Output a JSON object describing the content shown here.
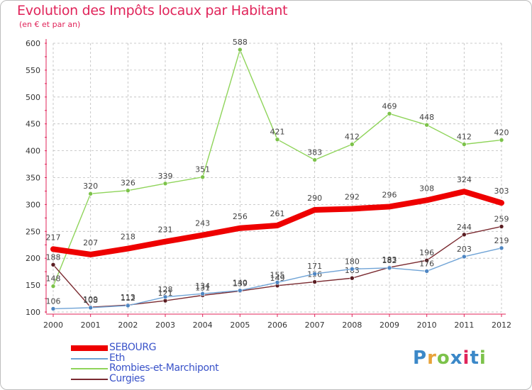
{
  "title": "Evolution des Impôts locaux par Habitant",
  "subtitle": "(en € et par an)",
  "logo_text": "Proxiti",
  "colors": {
    "title": "#e0245a",
    "axis": "#e0245a",
    "grid": "#bbbbbb",
    "legend_text": "#3a53c9",
    "logo": [
      "#3b88c8",
      "#e8a33a",
      "#7cc24a",
      "#3b88c8",
      "#e0245a",
      "#3b88c8",
      "#7cc24a"
    ]
  },
  "chart_data": {
    "type": "line",
    "x": [
      "2000",
      "2001",
      "2002",
      "2003",
      "2004",
      "2005",
      "2006",
      "2007",
      "2008",
      "2009",
      "2010",
      "2011",
      "2012"
    ],
    "ylim": [
      100,
      600
    ],
    "yticks": [
      100,
      150,
      200,
      250,
      300,
      350,
      400,
      450,
      500,
      550,
      600
    ],
    "grid": true,
    "legend_position": "bottom-left",
    "series": [
      {
        "name": "Rombies-et-Marchipont",
        "color": "#8fd45a",
        "marker": "#7cc24a",
        "values": [
          148,
          320,
          326,
          339,
          351,
          588,
          421,
          383,
          412,
          469,
          448,
          412,
          420
        ]
      },
      {
        "name": "Curgies",
        "color": "#7a2a30",
        "marker": "#5a1d22",
        "values": [
          188,
          109,
          113,
          121,
          131,
          139,
          149,
          156,
          163,
          183,
          196,
          244,
          259
        ]
      },
      {
        "name": "Eth",
        "color": "#6fa3d6",
        "marker": "#4f86c2",
        "values": [
          106,
          108,
          112,
          128,
          134,
          140,
          155,
          171,
          180,
          182,
          176,
          203,
          219
        ]
      },
      {
        "name": "SEBOURG",
        "color": "#ee0000",
        "marker": "#ee0000",
        "values": [
          217,
          207,
          218,
          231,
          243,
          256,
          261,
          290,
          292,
          296,
          308,
          324,
          303
        ]
      }
    ]
  },
  "legend": [
    {
      "label": "SEBOURG",
      "color": "#ee0000"
    },
    {
      "label": "Eth",
      "color": "#6fa3d6"
    },
    {
      "label": "Rombies-et-Marchipont",
      "color": "#8fd45a"
    },
    {
      "label": "Curgies",
      "color": "#7a2a30"
    }
  ]
}
